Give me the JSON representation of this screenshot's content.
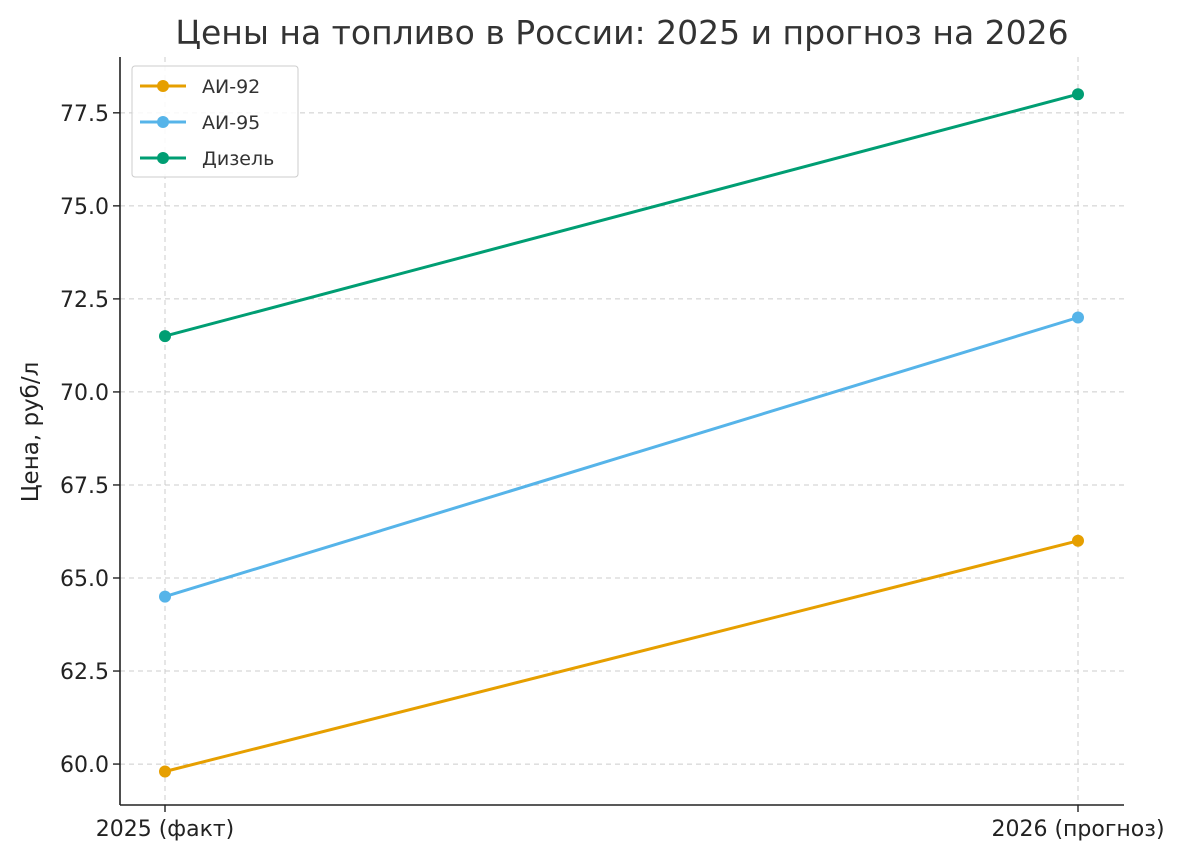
{
  "chart_data": {
    "type": "line",
    "title": "Цены на топливо в России: 2025 и прогноз на 2026",
    "xlabel": "",
    "ylabel": "Цена, руб/л",
    "categories": [
      "2025 (факт)",
      "2026 (прогноз)"
    ],
    "ylim": [
      58.9,
      79
    ],
    "yticks": [
      "60.0",
      "62.5",
      "65.0",
      "67.5",
      "70.0",
      "72.5",
      "75.0",
      "77.5"
    ],
    "grid": true,
    "legend_position": "top-left",
    "series": [
      {
        "name": "АИ-92",
        "values": [
          59.8,
          66.0
        ],
        "color": "#E69F00"
      },
      {
        "name": "АИ-95",
        "values": [
          64.5,
          72.0
        ],
        "color": "#56B4E9"
      },
      {
        "name": "Дизель",
        "values": [
          71.5,
          78.0
        ],
        "color": "#009E73"
      }
    ]
  }
}
